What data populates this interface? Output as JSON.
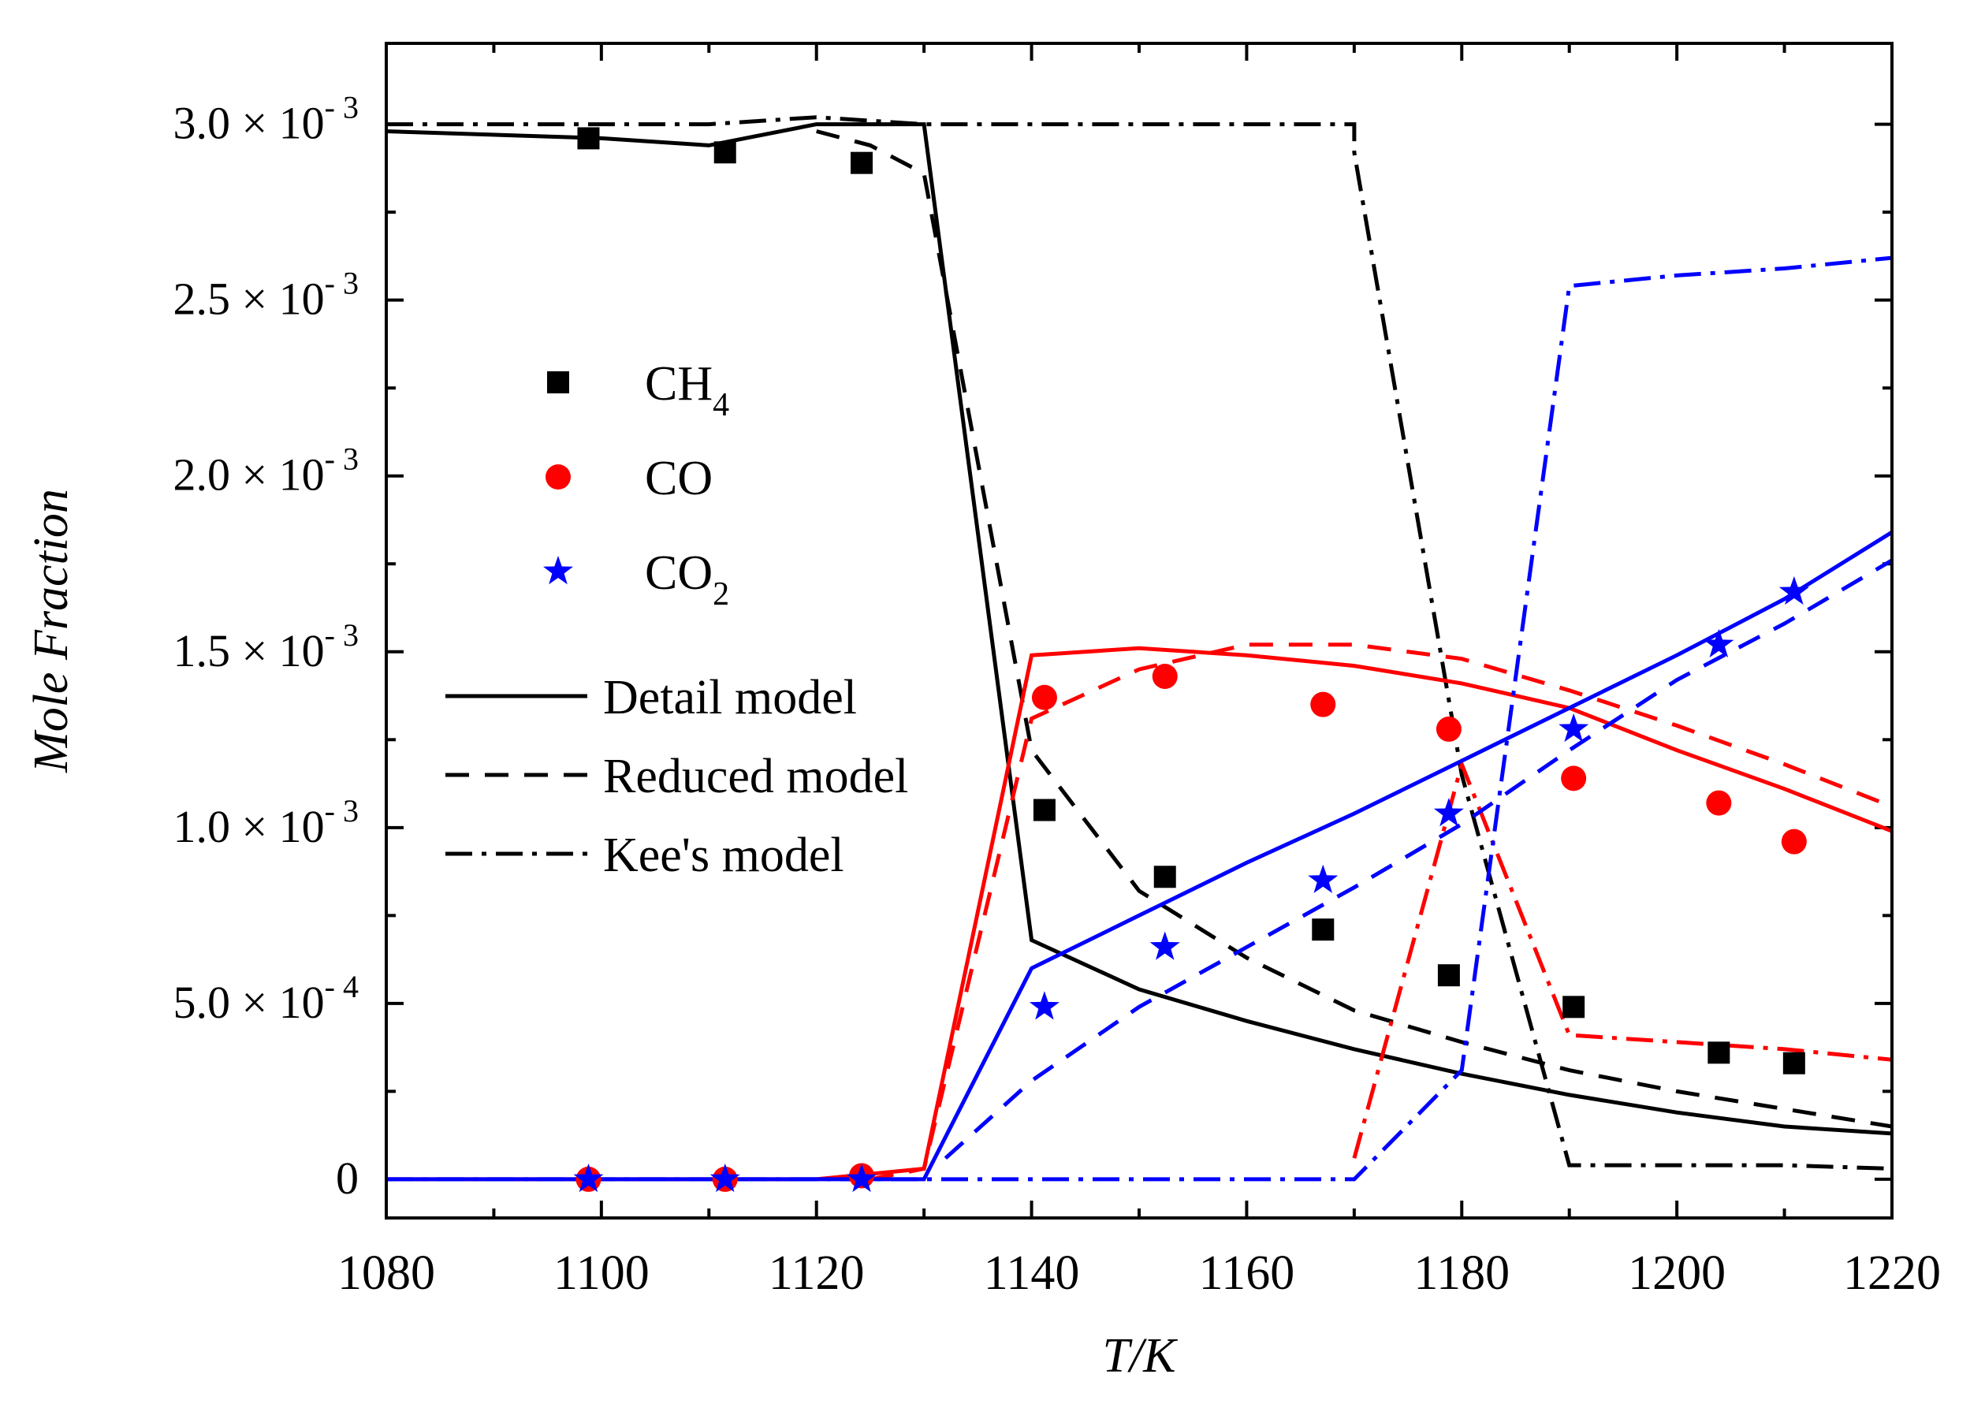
{
  "chart_data": {
    "type": "line",
    "xlabel": "T/K",
    "ylabel": "Mole Fraction",
    "xlim": [
      1080,
      1220
    ],
    "ylim": [
      -0.00011,
      0.00323
    ],
    "x_ticks": [
      1080,
      1100,
      1120,
      1140,
      1160,
      1180,
      1200,
      1220
    ],
    "y_ticks": [
      {
        "value": 0,
        "mantissa": "0",
        "exponent": ""
      },
      {
        "value": 0.0005,
        "mantissa": "5.0 × 10",
        "exponent": "- 4"
      },
      {
        "value": 0.001,
        "mantissa": "1.0 × 10",
        "exponent": "- 3"
      },
      {
        "value": 0.0015,
        "mantissa": "1.5 × 10",
        "exponent": "- 3"
      },
      {
        "value": 0.002,
        "mantissa": "2.0 × 10",
        "exponent": "- 3"
      },
      {
        "value": 0.0025,
        "mantissa": "2.5 × 10",
        "exponent": "- 3"
      },
      {
        "value": 0.003,
        "mantissa": "3.0 × 10",
        "exponent": "- 3"
      }
    ],
    "grid": false,
    "colors": {
      "CH4": "#000000",
      "CO": "#ff0000",
      "CO2": "#0000ff"
    },
    "legend_species": [
      {
        "key": "CH4",
        "base": "CH",
        "sub": "4",
        "marker": "square",
        "color": "#000000"
      },
      {
        "key": "CO",
        "base": "CO",
        "sub": "",
        "marker": "circle",
        "color": "#ff0000"
      },
      {
        "key": "CO2",
        "base": "CO",
        "sub": "2",
        "marker": "star",
        "color": "#0000ff"
      }
    ],
    "legend_models": [
      {
        "label": "Detail model",
        "style": "solid"
      },
      {
        "label": "Reduced model",
        "style": "dashed"
      },
      {
        "label": "Kee's model",
        "style": "dashdot"
      }
    ],
    "experiments": [
      {
        "species": "CH4",
        "marker": "square",
        "color": "#000000",
        "x": [
          1098.8,
          1111.5,
          1124.2,
          1141.2,
          1152.4,
          1167.1,
          1178.8,
          1190.4,
          1203.9,
          1210.9
        ],
        "y": [
          0.00296,
          0.00292,
          0.00289,
          0.00105,
          0.00086,
          0.00071,
          0.00058,
          0.00049,
          0.00036,
          0.00033
        ]
      },
      {
        "species": "CO",
        "marker": "circle",
        "color": "#ff0000",
        "x": [
          1098.8,
          1111.5,
          1124.2,
          1141.2,
          1152.4,
          1167.1,
          1178.8,
          1190.4,
          1203.9,
          1210.9
        ],
        "y": [
          0.0,
          0.0,
          1e-05,
          0.00137,
          0.00143,
          0.00135,
          0.00128,
          0.00114,
          0.00107,
          0.00096
        ]
      },
      {
        "species": "CO2",
        "marker": "star",
        "color": "#0000ff",
        "x": [
          1098.8,
          1111.5,
          1124.2,
          1141.2,
          1152.4,
          1167.1,
          1178.8,
          1190.4,
          1203.9,
          1210.9
        ],
        "y": [
          0.0,
          0.0,
          0.0,
          0.00049,
          0.00066,
          0.00085,
          0.00104,
          0.00128,
          0.00152,
          0.00167
        ]
      }
    ],
    "series": [
      {
        "species": "CH4",
        "model": "Detail",
        "color": "#000000",
        "style": "solid",
        "x": [
          1080,
          1100,
          1110,
          1120,
          1130,
          1140,
          1150,
          1160,
          1170,
          1180,
          1190,
          1200,
          1210,
          1220
        ],
        "y": [
          0.00298,
          0.00296,
          0.00294,
          0.003,
          0.003,
          0.00068,
          0.00054,
          0.00045,
          0.00037,
          0.0003,
          0.00024,
          0.00019,
          0.00015,
          0.00013
        ]
      },
      {
        "species": "CH4",
        "model": "Reduced",
        "color": "#000000",
        "style": "dashed",
        "x": [
          1120,
          1125,
          1130,
          1140,
          1150,
          1160,
          1170,
          1180,
          1190,
          1200,
          1210,
          1220
        ],
        "y": [
          0.00298,
          0.00294,
          0.00286,
          0.00122,
          0.00082,
          0.00063,
          0.00048,
          0.00039,
          0.00031,
          0.00025,
          0.0002,
          0.00015
        ]
      },
      {
        "species": "CH4",
        "model": "Kee",
        "color": "#000000",
        "style": "dashdot",
        "x": [
          1080,
          1100,
          1110,
          1120,
          1130,
          1140,
          1150,
          1160,
          1170,
          1170,
          1180,
          1190,
          1200,
          1210,
          1220
        ],
        "y": [
          0.003,
          0.003,
          0.003,
          0.00302,
          0.003,
          0.003,
          0.003,
          0.003,
          0.003,
          0.00292,
          0.00115,
          4e-05,
          4e-05,
          4e-05,
          3e-05
        ]
      },
      {
        "species": "CO",
        "model": "Detail",
        "color": "#ff0000",
        "style": "solid",
        "x": [
          1080,
          1100,
          1110,
          1120,
          1130,
          1140,
          1150,
          1160,
          1170,
          1180,
          1190,
          1200,
          1210,
          1220
        ],
        "y": [
          0.0,
          0.0,
          0.0,
          0.0,
          3e-05,
          0.00149,
          0.00151,
          0.00149,
          0.00146,
          0.00141,
          0.00134,
          0.00122,
          0.00111,
          0.00099
        ]
      },
      {
        "species": "CO",
        "model": "Reduced",
        "color": "#ff0000",
        "style": "dashed",
        "x": [
          1125,
          1130,
          1140,
          1150,
          1160,
          1170,
          1180,
          1190,
          1200,
          1210,
          1220
        ],
        "y": [
          0.0,
          3e-05,
          0.00131,
          0.00145,
          0.00152,
          0.00152,
          0.00148,
          0.00139,
          0.00129,
          0.00118,
          0.00106
        ]
      },
      {
        "species": "CO",
        "model": "Kee",
        "color": "#ff0000",
        "style": "dashdot",
        "x": [
          1170,
          1180,
          1190,
          1200,
          1210,
          1220
        ],
        "y": [
          6e-05,
          0.00118,
          0.00041,
          0.00039,
          0.00037,
          0.00034
        ]
      },
      {
        "species": "CO2",
        "model": "Detail",
        "color": "#0000ff",
        "style": "solid",
        "x": [
          1080,
          1100,
          1110,
          1120,
          1130,
          1140,
          1150,
          1160,
          1170,
          1180,
          1190,
          1200,
          1210,
          1220
        ],
        "y": [
          0.0,
          0.0,
          0.0,
          0.0,
          0.0,
          0.0006,
          0.00075,
          0.0009,
          0.00104,
          0.00119,
          0.00134,
          0.00149,
          0.00165,
          0.00184
        ]
      },
      {
        "species": "CO2",
        "model": "Reduced",
        "color": "#0000ff",
        "style": "dashed",
        "x": [
          1132,
          1140,
          1150,
          1160,
          1170,
          1180,
          1190,
          1200,
          1210,
          1220
        ],
        "y": [
          6e-05,
          0.00028,
          0.00049,
          0.00066,
          0.00083,
          0.00101,
          0.00122,
          0.00142,
          0.00158,
          0.00176
        ]
      },
      {
        "species": "CO2",
        "model": "Kee",
        "color": "#0000ff",
        "style": "dashdot",
        "x": [
          1080,
          1100,
          1120,
          1140,
          1160,
          1170,
          1180,
          1190,
          1200,
          1210,
          1220
        ],
        "y": [
          0.0,
          0.0,
          0.0,
          0.0,
          0.0,
          0.0,
          0.00031,
          0.00254,
          0.00257,
          0.00259,
          0.00262
        ]
      }
    ]
  }
}
